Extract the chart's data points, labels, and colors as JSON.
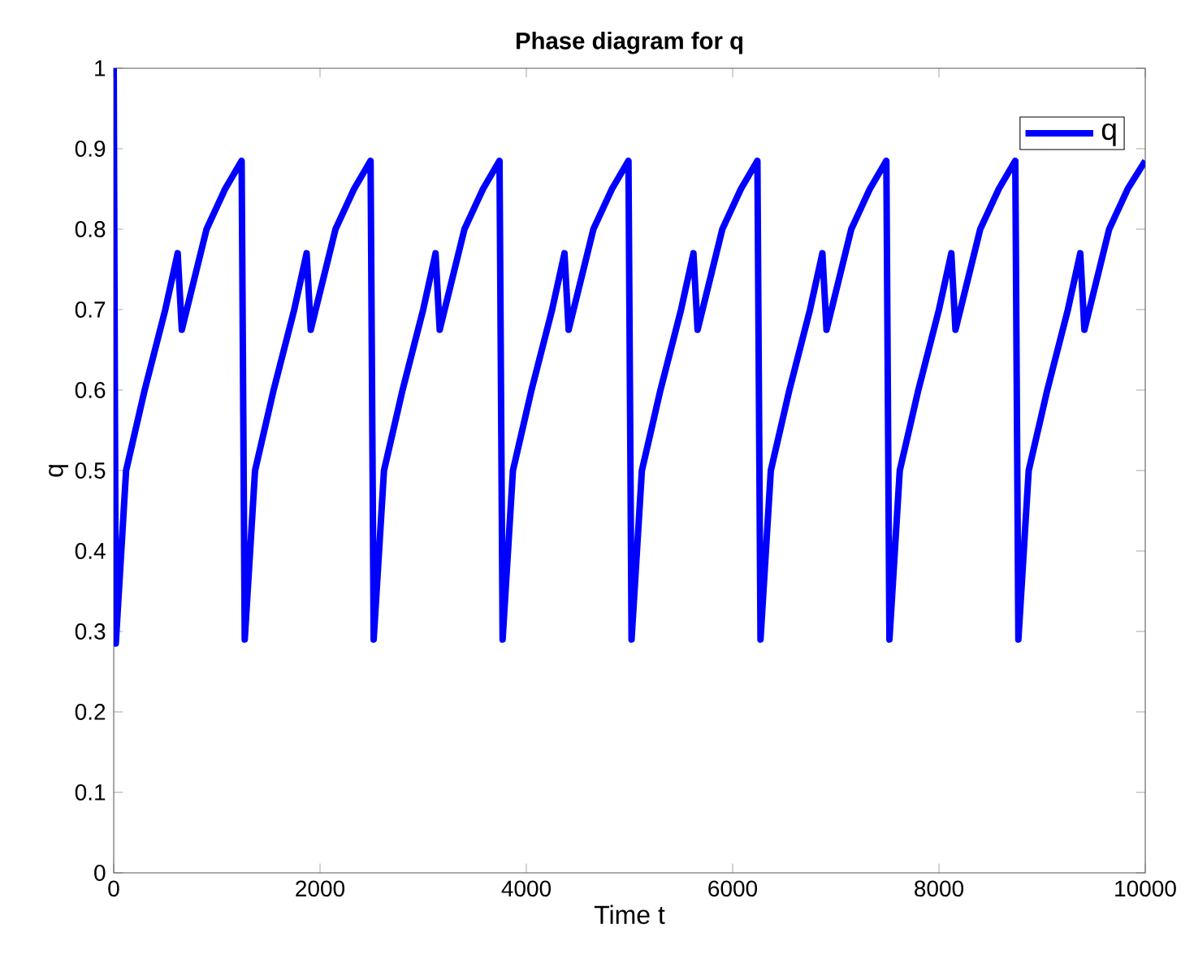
{
  "chart_data": {
    "type": "line",
    "title": "Phase diagram for q",
    "xlabel": "Time t",
    "ylabel": "q",
    "xlim": [
      0,
      10000
    ],
    "ylim": [
      0,
      1
    ],
    "xticks": [
      0,
      2000,
      4000,
      6000,
      8000,
      10000
    ],
    "yticks": [
      0,
      0.1,
      0.2,
      0.3,
      0.4,
      0.5,
      0.6,
      0.7,
      0.8,
      0.9,
      1
    ],
    "legend": "top right",
    "grid": false,
    "marker": "none",
    "line_style": "solid",
    "series": [
      {
        "name": "q",
        "color": "#0000ff",
        "x": [
          0,
          20,
          120,
          300,
          500,
          620,
          660,
          900,
          1080,
          1240,
          1270,
          1370,
          1550,
          1750,
          1870,
          1910,
          2150,
          2330,
          2490,
          2520,
          2620,
          2800,
          3000,
          3120,
          3160,
          3400,
          3580,
          3740,
          3770,
          3870,
          4050,
          4250,
          4370,
          4410,
          4650,
          4830,
          4990,
          5020,
          5120,
          5300,
          5500,
          5620,
          5660,
          5900,
          6080,
          6240,
          6270,
          6370,
          6550,
          6750,
          6870,
          6910,
          7150,
          7330,
          7490,
          7520,
          7620,
          7800,
          8000,
          8120,
          8160,
          8400,
          8580,
          8740,
          8770,
          8870,
          9050,
          9250,
          9370,
          9410,
          9650,
          9830,
          10000
        ],
        "values": [
          1,
          0.285,
          0.5,
          0.6,
          0.7,
          0.77,
          0.675,
          0.8,
          0.85,
          0.885,
          0.29,
          0.5,
          0.6,
          0.7,
          0.77,
          0.675,
          0.8,
          0.85,
          0.885,
          0.29,
          0.5,
          0.6,
          0.7,
          0.77,
          0.675,
          0.8,
          0.85,
          0.885,
          0.29,
          0.5,
          0.6,
          0.7,
          0.77,
          0.675,
          0.8,
          0.85,
          0.885,
          0.29,
          0.5,
          0.6,
          0.7,
          0.77,
          0.675,
          0.8,
          0.85,
          0.885,
          0.29,
          0.5,
          0.6,
          0.7,
          0.77,
          0.675,
          0.8,
          0.85,
          0.885,
          0.29,
          0.5,
          0.6,
          0.7,
          0.77,
          0.675,
          0.8,
          0.85,
          0.885,
          0.29,
          0.5,
          0.6,
          0.7,
          0.77,
          0.675,
          0.8,
          0.85,
          0.885
        ]
      }
    ]
  }
}
